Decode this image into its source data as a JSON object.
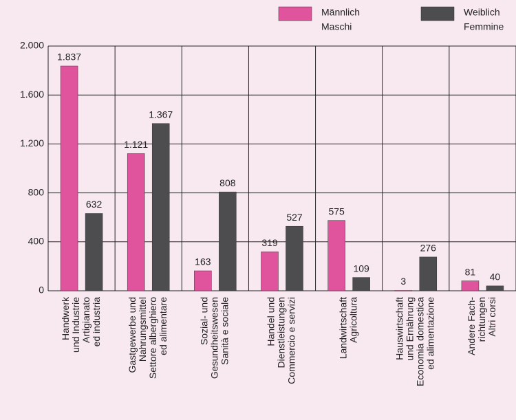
{
  "chart_data": {
    "type": "bar",
    "categories": [
      [
        "Handwerk",
        "und Industrie",
        "Artigianato",
        "ed industria"
      ],
      [
        "Gastgewerbe und",
        "Nahrungsmittel",
        "Settore alberghiero",
        "ed alimentare"
      ],
      [
        "Sozial- und",
        "Gesundheitswesen",
        "Sanità e sociale"
      ],
      [
        "Handel und",
        "Dienstleistungen",
        "Commercio e servizi"
      ],
      [
        "Landwirtschaft",
        "Agricoltura"
      ],
      [
        "Hauswirtschaft",
        "und Ernährung",
        "Economia domestica",
        "ed alimentazione"
      ],
      [
        "Andere Fach-",
        "richtungen",
        "Altri corsi"
      ]
    ],
    "series": [
      {
        "name": [
          "Männlich",
          "Maschi"
        ],
        "color": "#e0539d",
        "values": [
          1837,
          1121,
          163,
          319,
          575,
          3,
          81
        ],
        "value_labels": [
          "1.837",
          "1.121",
          "163",
          "319",
          "575",
          "3",
          "81"
        ]
      },
      {
        "name": [
          "Weiblich",
          "Femmine"
        ],
        "color": "#4d4d4f",
        "values": [
          632,
          1367,
          808,
          527,
          109,
          276,
          40
        ],
        "value_labels": [
          "632",
          "1.367",
          "808",
          "527",
          "109",
          "276",
          "40"
        ]
      }
    ],
    "ylim": [
      0,
      2000
    ],
    "yticks": [
      0,
      400,
      800,
      {
        "value": 1200,
        "label": "1.200"
      },
      {
        "value": 1600,
        "label": "1.600"
      },
      {
        "value": 2000,
        "label": "2.000"
      }
    ],
    "grid": true
  }
}
